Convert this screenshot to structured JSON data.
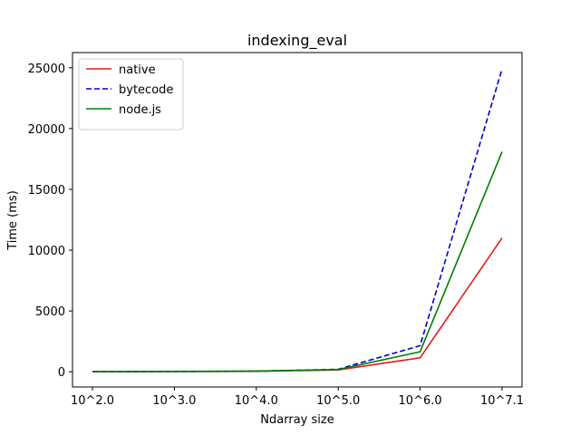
{
  "chart_data": {
    "type": "line",
    "title": "indexing_eval",
    "xlabel": "Ndarray size",
    "ylabel": "Time (ms)",
    "categories": [
      "10^2.0",
      "10^3.0",
      "10^4.0",
      "10^5.0",
      "10^6.0",
      "10^7.1"
    ],
    "ylim": [
      -1250,
      26250
    ],
    "yticks": [
      0,
      5000,
      10000,
      15000,
      20000,
      25000
    ],
    "grid": false,
    "legend_position": "top-left",
    "series": [
      {
        "name": "native",
        "color": "#e41a1c",
        "style": "solid",
        "values": [
          5,
          20,
          40,
          150,
          1150,
          11000
        ]
      },
      {
        "name": "bytecode",
        "color": "#0000cc",
        "style": "dashed",
        "values": [
          5,
          20,
          50,
          200,
          2150,
          24900
        ]
      },
      {
        "name": "node.js",
        "color": "#007f00",
        "style": "solid",
        "values": [
          15,
          30,
          60,
          180,
          1650,
          18100
        ]
      }
    ]
  }
}
